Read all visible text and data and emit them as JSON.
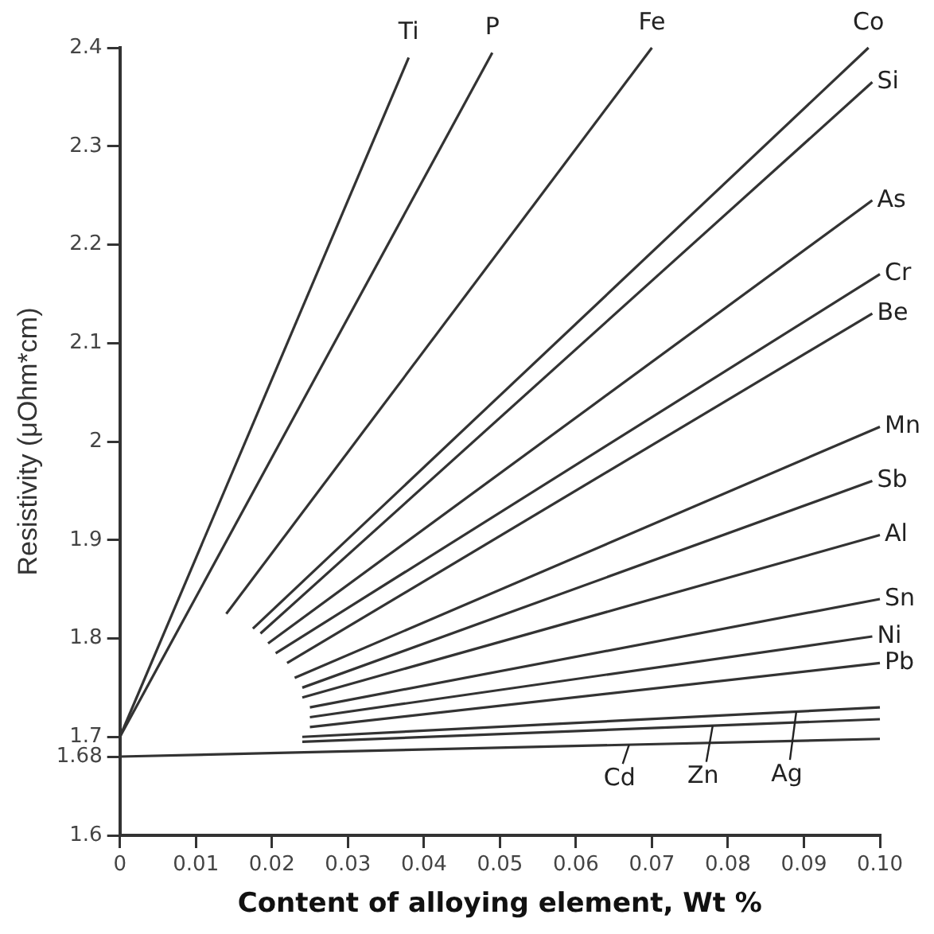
{
  "chart_data": {
    "type": "line",
    "xlabel": "Content of alloying element, Wt %",
    "ylabel": "Resistivity (μOhm*cm)",
    "xlim": [
      0,
      0.1
    ],
    "ylim": [
      1.6,
      2.4
    ],
    "xticks": [
      0,
      0.01,
      0.02,
      0.03,
      0.04,
      0.05,
      0.06,
      0.07,
      0.08,
      0.09,
      {
        "value": 0.1,
        "label": "0.10"
      }
    ],
    "yticks": [
      1.6,
      1.68,
      1.7,
      1.8,
      1.9,
      2.0,
      2.1,
      2.2,
      2.3,
      2.4
    ],
    "grid": false,
    "legend": false,
    "marker": "none",
    "line_style": "solid",
    "series": [
      {
        "name": "Ti",
        "color": "#333333",
        "x": [
          0,
          0.038
        ],
        "values": [
          1.7,
          2.39
        ]
      },
      {
        "name": "P",
        "color": "#333333",
        "x": [
          0,
          0.049
        ],
        "values": [
          1.7,
          2.395
        ]
      },
      {
        "name": "Fe",
        "color": "#333333",
        "x": [
          0.014,
          0.07
        ],
        "values": [
          1.825,
          2.4
        ]
      },
      {
        "name": "Co",
        "color": "#333333",
        "x": [
          0.0175,
          0.0985
        ],
        "values": [
          1.81,
          2.4
        ]
      },
      {
        "name": "Si",
        "color": "#333333",
        "x": [
          0.0185,
          0.099
        ],
        "values": [
          1.805,
          2.365
        ]
      },
      {
        "name": "As",
        "color": "#333333",
        "x": [
          0.0195,
          0.099
        ],
        "values": [
          1.795,
          2.245
        ]
      },
      {
        "name": "Cr",
        "color": "#333333",
        "x": [
          0.0205,
          0.1
        ],
        "values": [
          1.785,
          2.17
        ]
      },
      {
        "name": "Be",
        "color": "#333333",
        "x": [
          0.022,
          0.099
        ],
        "values": [
          1.775,
          2.13
        ]
      },
      {
        "name": "Mn",
        "color": "#333333",
        "x": [
          0.023,
          0.1
        ],
        "values": [
          1.76,
          2.015
        ]
      },
      {
        "name": "Sb",
        "color": "#333333",
        "x": [
          0.024,
          0.099
        ],
        "values": [
          1.75,
          1.96
        ]
      },
      {
        "name": "Al",
        "color": "#333333",
        "x": [
          0.024,
          0.1
        ],
        "values": [
          1.74,
          1.905
        ]
      },
      {
        "name": "Sn",
        "color": "#333333",
        "x": [
          0.025,
          0.1
        ],
        "values": [
          1.73,
          1.84
        ]
      },
      {
        "name": "Ni",
        "color": "#333333",
        "x": [
          0.025,
          0.099
        ],
        "values": [
          1.72,
          1.802
        ]
      },
      {
        "name": "Pb",
        "color": "#333333",
        "x": [
          0.025,
          0.1
        ],
        "values": [
          1.71,
          1.775
        ]
      },
      {
        "name": "Ag",
        "color": "#333333",
        "x": [
          0.024,
          0.1
        ],
        "values": [
          1.7,
          1.73
        ]
      },
      {
        "name": "Zn",
        "color": "#333333",
        "x": [
          0.024,
          0.1
        ],
        "values": [
          1.695,
          1.718
        ]
      },
      {
        "name": "Cd",
        "color": "#333333",
        "x": [
          0,
          0.1
        ],
        "values": [
          1.68,
          1.698
        ]
      }
    ]
  }
}
